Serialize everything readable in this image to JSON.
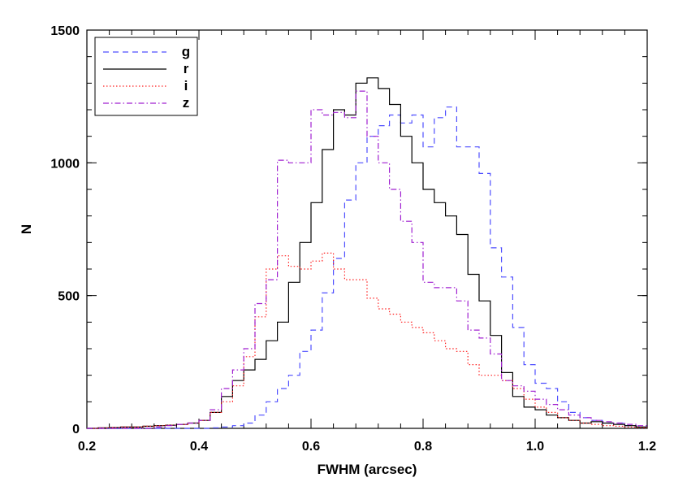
{
  "chart_data": {
    "type": "line",
    "title": "",
    "xlabel": "FWHM (arcsec)",
    "ylabel": "N",
    "xlim": [
      0.2,
      1.2
    ],
    "ylim": [
      0,
      1500
    ],
    "xticks": [
      "0.2",
      "0.4",
      "0.6",
      "0.8",
      "1.0",
      "1.2"
    ],
    "yticks": [
      "0",
      "500",
      "1000",
      "1500"
    ],
    "legend_position": "top-left",
    "series": [
      {
        "name": "g",
        "color": "#4f4fff",
        "dash": "dashed",
        "x": [
          0.2,
          0.22,
          0.24,
          0.26,
          0.28,
          0.3,
          0.32,
          0.34,
          0.36,
          0.38,
          0.4,
          0.42,
          0.44,
          0.46,
          0.48,
          0.5,
          0.52,
          0.54,
          0.56,
          0.58,
          0.6,
          0.62,
          0.64,
          0.66,
          0.68,
          0.7,
          0.72,
          0.74,
          0.76,
          0.78,
          0.8,
          0.82,
          0.84,
          0.86,
          0.88,
          0.9,
          0.92,
          0.94,
          0.96,
          0.98,
          1.0,
          1.02,
          1.04,
          1.06,
          1.08,
          1.1,
          1.12,
          1.14,
          1.16,
          1.18
        ],
        "values": [
          0,
          0,
          0,
          0,
          0,
          0,
          0,
          0,
          0,
          0,
          0,
          2,
          5,
          10,
          20,
          50,
          100,
          150,
          200,
          290,
          370,
          510,
          640,
          860,
          1000,
          1100,
          1140,
          1180,
          1150,
          1180,
          1060,
          1170,
          1210,
          1060,
          1060,
          960,
          680,
          570,
          380,
          240,
          170,
          150,
          100,
          60,
          40,
          30,
          20,
          20,
          10,
          5
        ]
      },
      {
        "name": "r",
        "color": "#000000",
        "dash": "solid",
        "x": [
          0.2,
          0.22,
          0.24,
          0.26,
          0.28,
          0.3,
          0.32,
          0.34,
          0.36,
          0.38,
          0.4,
          0.42,
          0.44,
          0.46,
          0.48,
          0.5,
          0.52,
          0.54,
          0.56,
          0.58,
          0.6,
          0.62,
          0.64,
          0.66,
          0.68,
          0.7,
          0.72,
          0.74,
          0.76,
          0.78,
          0.8,
          0.82,
          0.84,
          0.86,
          0.88,
          0.9,
          0.92,
          0.94,
          0.96,
          0.98,
          1.0,
          1.02,
          1.04,
          1.06,
          1.08,
          1.1,
          1.12,
          1.14,
          1.16,
          1.18
        ],
        "values": [
          0,
          2,
          3,
          5,
          5,
          8,
          10,
          12,
          15,
          20,
          30,
          60,
          120,
          180,
          220,
          260,
          330,
          400,
          550,
          700,
          850,
          1050,
          1200,
          1180,
          1300,
          1320,
          1280,
          1220,
          1100,
          1000,
          900,
          850,
          800,
          730,
          580,
          480,
          350,
          210,
          120,
          80,
          70,
          50,
          40,
          30,
          20,
          25,
          20,
          15,
          10,
          5
        ]
      },
      {
        "name": "i",
        "color": "#ff2020",
        "dash": "dotted",
        "x": [
          0.2,
          0.22,
          0.24,
          0.26,
          0.28,
          0.3,
          0.32,
          0.34,
          0.36,
          0.38,
          0.4,
          0.42,
          0.44,
          0.46,
          0.48,
          0.5,
          0.52,
          0.54,
          0.56,
          0.58,
          0.6,
          0.62,
          0.64,
          0.66,
          0.68,
          0.7,
          0.72,
          0.74,
          0.76,
          0.78,
          0.8,
          0.82,
          0.84,
          0.86,
          0.88,
          0.9,
          0.92,
          0.94,
          0.96,
          0.98,
          1.0,
          1.02,
          1.04,
          1.06,
          1.08,
          1.1,
          1.12,
          1.14,
          1.16,
          1.18
        ],
        "values": [
          0,
          2,
          3,
          5,
          5,
          8,
          10,
          12,
          15,
          20,
          30,
          60,
          100,
          160,
          270,
          420,
          600,
          650,
          610,
          600,
          630,
          660,
          600,
          560,
          560,
          490,
          450,
          430,
          400,
          380,
          360,
          330,
          300,
          290,
          240,
          200,
          200,
          180,
          150,
          110,
          80,
          60,
          40,
          30,
          20,
          15,
          10,
          8,
          5,
          3
        ]
      },
      {
        "name": "z",
        "color": "#a020d0",
        "dash": "dashdot",
        "x": [
          0.2,
          0.22,
          0.24,
          0.26,
          0.28,
          0.3,
          0.32,
          0.34,
          0.36,
          0.38,
          0.4,
          0.42,
          0.44,
          0.46,
          0.48,
          0.5,
          0.52,
          0.54,
          0.56,
          0.58,
          0.6,
          0.62,
          0.64,
          0.66,
          0.68,
          0.7,
          0.72,
          0.74,
          0.76,
          0.78,
          0.8,
          0.82,
          0.84,
          0.86,
          0.88,
          0.9,
          0.92,
          0.94,
          0.96,
          0.98,
          1.0,
          1.02,
          1.04,
          1.06,
          1.08,
          1.1,
          1.12,
          1.14,
          1.16,
          1.18
        ],
        "values": [
          0,
          0,
          0,
          0,
          0,
          0,
          5,
          10,
          15,
          20,
          30,
          70,
          150,
          220,
          300,
          470,
          560,
          1010,
          1000,
          1000,
          1200,
          1180,
          1190,
          1170,
          1270,
          1100,
          1000,
          900,
          780,
          700,
          550,
          530,
          530,
          480,
          370,
          340,
          280,
          180,
          160,
          140,
          110,
          90,
          70,
          50,
          40,
          30,
          25,
          20,
          15,
          10
        ]
      }
    ]
  }
}
